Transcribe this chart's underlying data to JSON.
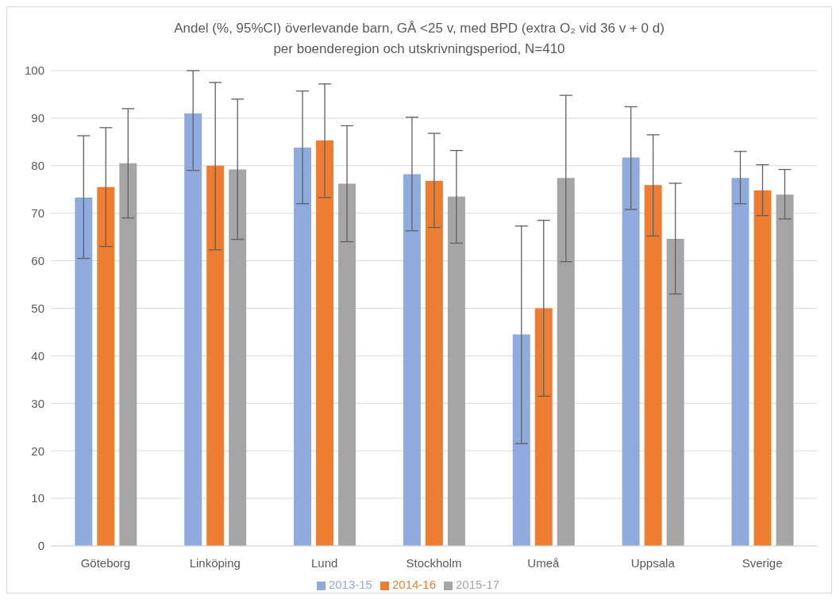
{
  "chart_data": {
    "type": "bar",
    "title": "Andel (%, 95%CI) överlevande barn, GÅ <25 v, med BPD (extra O₂ vid 36 v + 0 d)",
    "subtitle": "per boenderegion och utskrivningsperiod, N=410",
    "categories": [
      "Göteborg",
      "Linköping",
      "Lund",
      "Stockholm",
      "Umeå",
      "Uppsala",
      "Sverige"
    ],
    "series": [
      {
        "name": "2013-15",
        "color": "#8faadc",
        "values": [
          73.3,
          91,
          83.8,
          78.2,
          44.5,
          81.7,
          77.4
        ],
        "errors": [
          [
            60.5,
            86.3
          ],
          [
            79,
            100
          ],
          [
            72,
            95.7
          ],
          [
            66.3,
            90.2
          ],
          [
            21.5,
            67.3
          ],
          [
            70.8,
            92.4
          ],
          [
            72,
            83
          ]
        ]
      },
      {
        "name": "2014-16",
        "color": "#ed7d31",
        "values": [
          75.5,
          80,
          85.3,
          76.8,
          50,
          75.9,
          74.8
        ],
        "errors": [
          [
            63,
            88
          ],
          [
            62.3,
            97.5
          ],
          [
            73.3,
            97.2
          ],
          [
            67,
            86.8
          ],
          [
            31.5,
            68.5
          ],
          [
            65.2,
            86.5
          ],
          [
            69.5,
            80.2
          ]
        ]
      },
      {
        "name": "2015-17",
        "color": "#a5a5a5",
        "values": [
          80.5,
          79.2,
          76.2,
          73.5,
          77.4,
          64.6,
          73.9
        ],
        "errors": [
          [
            69,
            92
          ],
          [
            64.5,
            94
          ],
          [
            64,
            88.4
          ],
          [
            63.7,
            83.2
          ],
          [
            59.8,
            94.8
          ],
          [
            53,
            76.3
          ],
          [
            68.8,
            79.2
          ]
        ]
      }
    ],
    "ylim": [
      0,
      100
    ],
    "yticks": [
      0,
      10,
      20,
      30,
      40,
      50,
      60,
      70,
      80,
      90,
      100
    ],
    "grid": "y",
    "legend": "bottom"
  }
}
